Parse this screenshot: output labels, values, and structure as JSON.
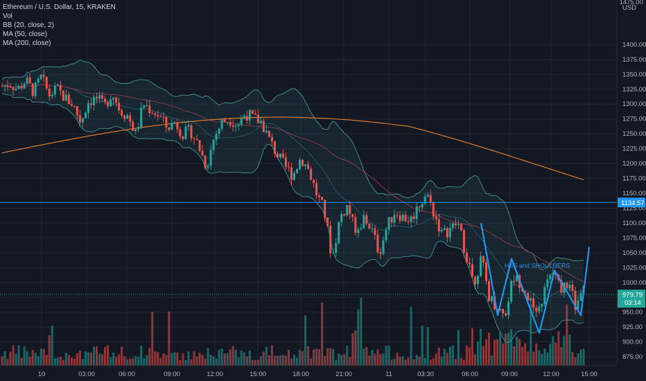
{
  "header": {
    "title": "Ethereum / U.S. Dollar, 15, KRAKEN",
    "indicators": [
      "Vol",
      "BB (20, close, 2)",
      "MA (50, close)",
      "MA (200, close)"
    ]
  },
  "price_axis": {
    "currency_top": "1475.00",
    "currency_unit": "USD",
    "ticks": [
      "1400.00",
      "1375.00",
      "1350.00",
      "1325.00",
      "1300.00",
      "1275.00",
      "1250.00",
      "1225.00",
      "1200.00",
      "1175.00",
      "1150.00",
      "1125.00",
      "1100.00",
      "1075.00",
      "1050.00",
      "1025.00",
      "1000.00",
      "975.00",
      "950.00",
      "925.00",
      "900.00",
      "875.00"
    ]
  },
  "time_axis": {
    "ticks": [
      "10",
      "03:00",
      "06:00",
      "09:00",
      "12:00",
      "15:00",
      "18:00",
      "21:00",
      "11",
      "03:30",
      "06:00",
      "09:00",
      "12:00",
      "15:00"
    ]
  },
  "horizontal_line": {
    "price": 1134.57,
    "label": "1134.57",
    "color": "#2196f3"
  },
  "last_price": {
    "price": 979.79,
    "label": "979.79",
    "countdown": "03:14",
    "color": "#26a69a"
  },
  "pattern": {
    "label": "H&S and SHOULDERS",
    "color": "#2196f3"
  },
  "colors": {
    "background": "#131722",
    "grid": "#1f2533",
    "up": "#26a69a",
    "down": "#ef5350",
    "bb": "#3d8c8c",
    "ma50": "#8b3a4a",
    "ma200": "#e07b2f"
  },
  "chart_data": {
    "type": "candlestick",
    "symbol": "Ethereum / U.S. Dollar",
    "interval": "15",
    "exchange": "KRAKEN",
    "ylim": [
      860,
      1475
    ],
    "price_path": [
      1330,
      1335,
      1325,
      1340,
      1320,
      1345,
      1315,
      1325,
      1310,
      1300,
      1270,
      1305,
      1310,
      1295,
      1320,
      1290,
      1280,
      1250,
      1300,
      1290,
      1280,
      1260,
      1270,
      1250,
      1255,
      1230,
      1195,
      1245,
      1270,
      1275,
      1265,
      1285,
      1275,
      1270,
      1240,
      1215,
      1195,
      1180,
      1210,
      1190,
      1150,
      1120,
      1040,
      1110,
      1130,
      1080,
      1110,
      1090,
      1050,
      1095,
      1120,
      1110,
      1105,
      1130,
      1150,
      1115,
      1080,
      1090,
      1100,
      1050,
      1000,
      1040,
      975,
      960,
      945,
      1010,
      1000,
      975,
      940,
      985,
      1020,
      990,
      1000,
      960,
      985
    ],
    "pattern_points": [
      [
        1100,
        "09:00"
      ],
      [
        945,
        "09:00"
      ],
      [
        1040,
        "10:30"
      ],
      [
        915,
        "12:00"
      ],
      [
        1020,
        "13:00"
      ],
      [
        945,
        "15:00"
      ],
      [
        1060,
        "15:00"
      ]
    ]
  }
}
